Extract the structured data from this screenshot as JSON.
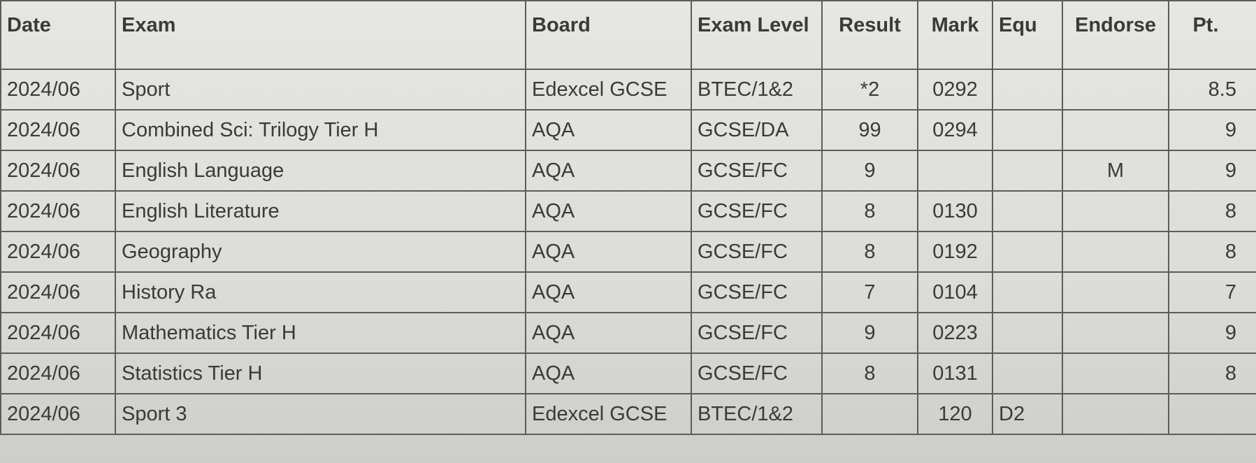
{
  "table": {
    "header": {
      "date": "Date",
      "exam": "Exam",
      "board": "Board",
      "level": "Exam Level",
      "result": "Result",
      "mark": "Mark",
      "equ": "Equ",
      "endorse": "Endorse",
      "pt": "Pt."
    },
    "rows": [
      {
        "date": "2024/06",
        "exam": "Sport",
        "board": "Edexcel GCSE",
        "level": "BTEC/1&2",
        "result": "*2",
        "mark": "0292",
        "pt": "8.5"
      },
      {
        "date": "2024/06",
        "exam": "Combined Sci: Trilogy Tier H",
        "board": "AQA",
        "level": "GCSE/DA",
        "result": "99",
        "mark": "0294",
        "pt": "9"
      },
      {
        "date": "2024/06",
        "exam": "English Language",
        "board": "AQA",
        "level": "GCSE/FC",
        "result": "9",
        "endorse": "M",
        "pt": "9"
      },
      {
        "date": "2024/06",
        "exam": "English Literature",
        "board": "AQA",
        "level": "GCSE/FC",
        "result": "8",
        "mark": "0130",
        "pt": "8"
      },
      {
        "date": "2024/06",
        "exam": "Geography",
        "board": "AQA",
        "level": "GCSE/FC",
        "result": "8",
        "mark": "0192",
        "pt": "8"
      },
      {
        "date": "2024/06",
        "exam": "History Ra",
        "board": "AQA",
        "level": "GCSE/FC",
        "result": "7",
        "mark": "0104",
        "pt": "7"
      },
      {
        "date": "2024/06",
        "exam": "Mathematics Tier H",
        "board": "AQA",
        "level": "GCSE/FC",
        "result": "9",
        "mark": "0223",
        "pt": "9"
      },
      {
        "date": "2024/06",
        "exam": "Statistics Tier H",
        "board": "AQA",
        "level": "GCSE/FC",
        "result": "8",
        "mark": "0131",
        "pt": "8"
      },
      {
        "date": "2024/06",
        "exam": "Sport 3",
        "board": "Edexcel GCSE",
        "level": "BTEC/1&2",
        "mark": "120",
        "equ": "D2"
      }
    ]
  }
}
